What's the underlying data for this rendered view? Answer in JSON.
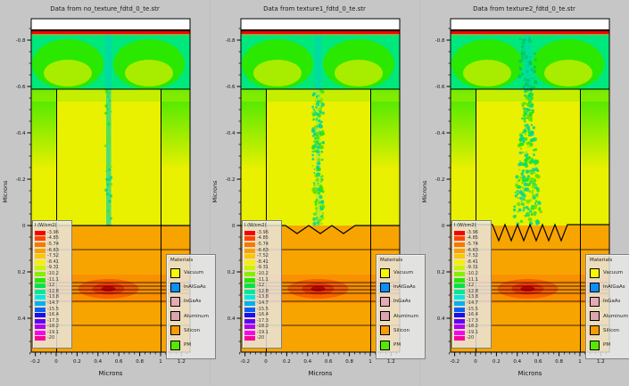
{
  "panels": [
    {
      "title": "Data from no_texture_fdtd_0_te.str",
      "texture": "none"
    },
    {
      "title": "Data from texture1_fdtd_0_te.str",
      "texture": "small"
    },
    {
      "title": "Data from texture2_fdtd_0_te.str",
      "texture": "large"
    }
  ],
  "axes": {
    "x_label": "Microns",
    "y_label": "Microns",
    "x_ticks": [
      "-0.2",
      "0",
      "0.2",
      "0.4",
      "0.6",
      "0.8",
      "1",
      "1.2"
    ],
    "y_ticks": [
      "-0.8",
      "-0.6",
      "-0.4",
      "-0.2",
      "0",
      "0.2",
      "0.4"
    ]
  },
  "colorbar": {
    "title": "I (W/cm2)",
    "entries": [
      {
        "color": "#f80000",
        "label": "-3.96"
      },
      {
        "color": "#f84800",
        "label": "-4.85"
      },
      {
        "color": "#f87800",
        "label": "-5.74"
      },
      {
        "color": "#f8a000",
        "label": "-6.63"
      },
      {
        "color": "#f8c800",
        "label": "-7.52"
      },
      {
        "color": "#f8f000",
        "label": "-8.41"
      },
      {
        "color": "#c8f400",
        "label": "-9.31"
      },
      {
        "color": "#84f000",
        "label": "-10.2"
      },
      {
        "color": "#28e800",
        "label": "-11.1"
      },
      {
        "color": "#00e44c",
        "label": "-12"
      },
      {
        "color": "#00e898",
        "label": "-12.8"
      },
      {
        "color": "#00e8e0",
        "label": "-13.8"
      },
      {
        "color": "#00b0f4",
        "label": "-14.7"
      },
      {
        "color": "#0060f8",
        "label": "-15.5"
      },
      {
        "color": "#1410f8",
        "label": "-16.4"
      },
      {
        "color": "#6000f8",
        "label": "-17.3"
      },
      {
        "color": "#ac00f8",
        "label": "-18.2"
      },
      {
        "color": "#f800f0",
        "label": "-19.1"
      },
      {
        "color": "#f800a0",
        "label": "-20"
      }
    ]
  },
  "materials": {
    "title": "Materials",
    "entries": [
      {
        "color": "#f8f800",
        "label": "Vacuum"
      },
      {
        "color": "#0890f8",
        "label": "InAlGaAs"
      },
      {
        "color": "#e4aab6",
        "label": "InGaAs"
      },
      {
        "color": "#dca4ae",
        "label": "Aluminum"
      },
      {
        "color": "#f89c00",
        "label": "Silicon"
      },
      {
        "color": "#55e800",
        "label": "PM"
      }
    ]
  },
  "plot_colors": {
    "chrome_gray": "#c6c6c6",
    "vacuum_white": "#ffffff",
    "top_red": "#f80000",
    "top_orange": "#f87800",
    "green_base": "#00e87c",
    "green_bright": "#2ae800",
    "yellow_green": "#a8ec00",
    "teal": "#00dca0",
    "mid_yellow": "#e9f000",
    "orange_base": "#f8a400",
    "orange_deep": "#f89000",
    "orange_red": "#f86000",
    "hot_red": "#cc0000",
    "yellow_blob": "#f8dc00"
  },
  "chart_data": [
    {
      "type": "heatmap",
      "title": "Data from no_texture_fdtd_0_te.str",
      "xlabel": "Microns",
      "ylabel": "Microns",
      "xlim": [
        -0.25,
        1.27
      ],
      "ylim": [
        0.55,
        -0.9
      ],
      "x_ticks": [
        -0.2,
        0,
        0.2,
        0.4,
        0.6,
        0.8,
        1,
        1.2
      ],
      "y_ticks": [
        -0.8,
        -0.6,
        -0.4,
        -0.2,
        0,
        0.2,
        0.4
      ],
      "colorbar_title": "I (W/cm2)",
      "colorbar_ticks": [
        -3.96,
        -4.85,
        -5.74,
        -6.63,
        -7.52,
        -8.41,
        -9.31,
        -10.2,
        -11.1,
        -12,
        -12.8,
        -13.8,
        -14.7,
        -15.5,
        -16.4,
        -17.3,
        -18.2,
        -19.1,
        -20
      ],
      "legend": [
        "Vacuum",
        "InAlGaAs",
        "InGaAs",
        "Aluminum",
        "Silicon",
        "PM"
      ],
      "annotation": "flat interface line at y=0 between x=0 and x=1"
    },
    {
      "type": "heatmap",
      "title": "Data from texture1_fdtd_0_te.str",
      "xlabel": "Microns",
      "ylabel": "Microns",
      "xlim": [
        -0.25,
        1.27
      ],
      "ylim": [
        0.55,
        -0.9
      ],
      "x_ticks": [
        -0.2,
        0,
        0.2,
        0.4,
        0.6,
        0.8,
        1,
        1.2
      ],
      "y_ticks": [
        -0.8,
        -0.6,
        -0.4,
        -0.2,
        0,
        0.2,
        0.4
      ],
      "colorbar_title": "I (W/cm2)",
      "colorbar_ticks": [
        -3.96,
        -4.85,
        -5.74,
        -6.63,
        -7.52,
        -8.41,
        -9.31,
        -10.2,
        -11.1,
        -12,
        -12.8,
        -13.8,
        -14.7,
        -15.5,
        -16.4,
        -17.3,
        -18.2,
        -19.1,
        -20
      ],
      "legend": [
        "Vacuum",
        "InAlGaAs",
        "InGaAs",
        "Aluminum",
        "Silicon",
        "PM"
      ],
      "annotation": "shallow triangular grating (3 teeth) at y=0"
    },
    {
      "type": "heatmap",
      "title": "Data from texture2_fdtd_0_te.str",
      "xlabel": "Microns",
      "ylabel": "Microns",
      "xlim": [
        -0.25,
        1.27
      ],
      "ylim": [
        0.55,
        -0.9
      ],
      "x_ticks": [
        -0.2,
        0,
        0.2,
        0.4,
        0.6,
        0.8,
        1,
        1.2
      ],
      "y_ticks": [
        -0.8,
        -0.6,
        -0.4,
        -0.2,
        0,
        0.2,
        0.4
      ],
      "colorbar_title": "I (W/cm2)",
      "colorbar_ticks": [
        -3.96,
        -4.85,
        -5.74,
        -6.63,
        -7.52,
        -8.41,
        -9.31,
        -10.2,
        -11.1,
        -12,
        -12.8,
        -13.8,
        -14.7,
        -15.5,
        -16.4,
        -17.3,
        -18.2,
        -19.1,
        -20
      ],
      "legend": [
        "Vacuum",
        "InAlGaAs",
        "InGaAs",
        "Aluminum",
        "Silicon",
        "PM"
      ],
      "annotation": "deep triangular grating (6 teeth) at y=0"
    }
  ]
}
